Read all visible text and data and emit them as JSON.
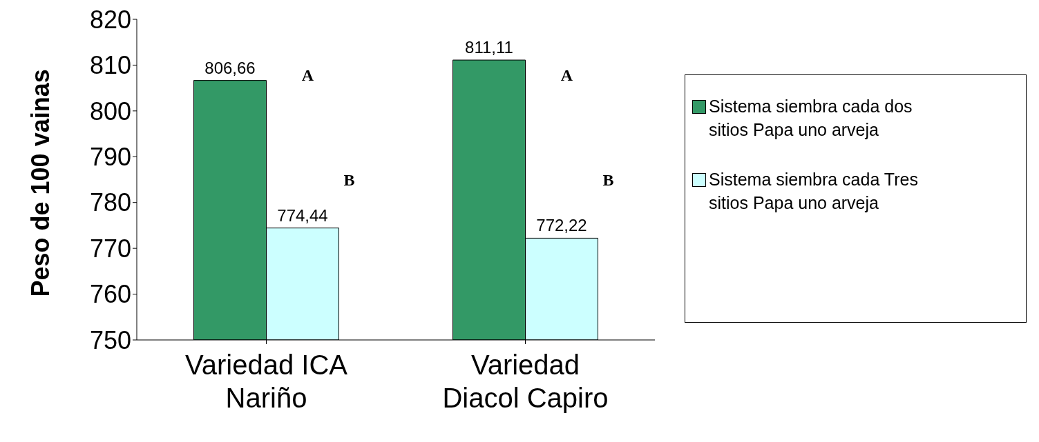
{
  "chart_data": {
    "type": "bar",
    "ylabel": "Peso de 100 vainas",
    "categories": [
      "Variedad ICA Nariño",
      "Variedad Diacol Capiro"
    ],
    "series": [
      {
        "name": "Sistema siembra cada dos sitios Papa uno arveja",
        "color": "#339966",
        "values": [
          806.66,
          811.11
        ],
        "value_labels": [
          "806,66",
          "811,11"
        ]
      },
      {
        "name": "Sistema siembra cada Tres sitios Papa uno arveja",
        "color": "#ccffff",
        "values": [
          774.44,
          772.22
        ],
        "value_labels": [
          "774,44",
          "772,22"
        ]
      }
    ],
    "ylim": [
      750,
      820
    ],
    "yticks": [
      750,
      760,
      770,
      780,
      790,
      800,
      810,
      820
    ],
    "legend": "right",
    "annotations": [
      "A",
      "B",
      "A",
      "B"
    ]
  }
}
